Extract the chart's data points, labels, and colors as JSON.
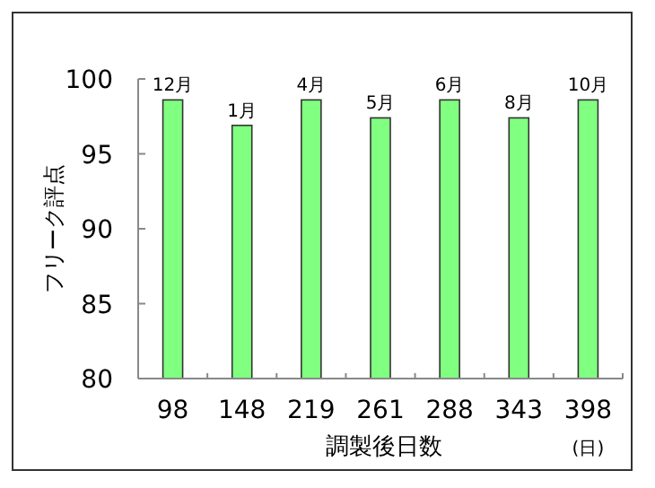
{
  "chart_data": {
    "type": "bar",
    "xlabel": "調製後日数",
    "ylabel": "フリーク評点",
    "categories": [
      "98",
      "148",
      "219",
      "261",
      "288",
      "343",
      "398"
    ],
    "values": [
      98.6,
      96.9,
      98.6,
      97.4,
      98.6,
      97.4,
      98.6
    ],
    "color": "#80ff80",
    "ylim": [
      80,
      100
    ],
    "yticks": [
      80,
      85,
      90,
      95,
      100
    ],
    "grid": false,
    "annotations": [
      {
        "text": "12月",
        "x": "98",
        "y": 98.6
      },
      {
        "text": "1月",
        "x": "148",
        "y": 96.9
      },
      {
        "text": "4月",
        "x": "219",
        "y": 98.6
      },
      {
        "text": "5月",
        "x": "261",
        "y": 97.4
      },
      {
        "text": "6月",
        "x": "288",
        "y": 98.6
      },
      {
        "text": "8月",
        "x": "343",
        "y": 97.4
      },
      {
        "text": "10月",
        "x": "398",
        "y": 98.6
      },
      "(日)"
    ]
  }
}
